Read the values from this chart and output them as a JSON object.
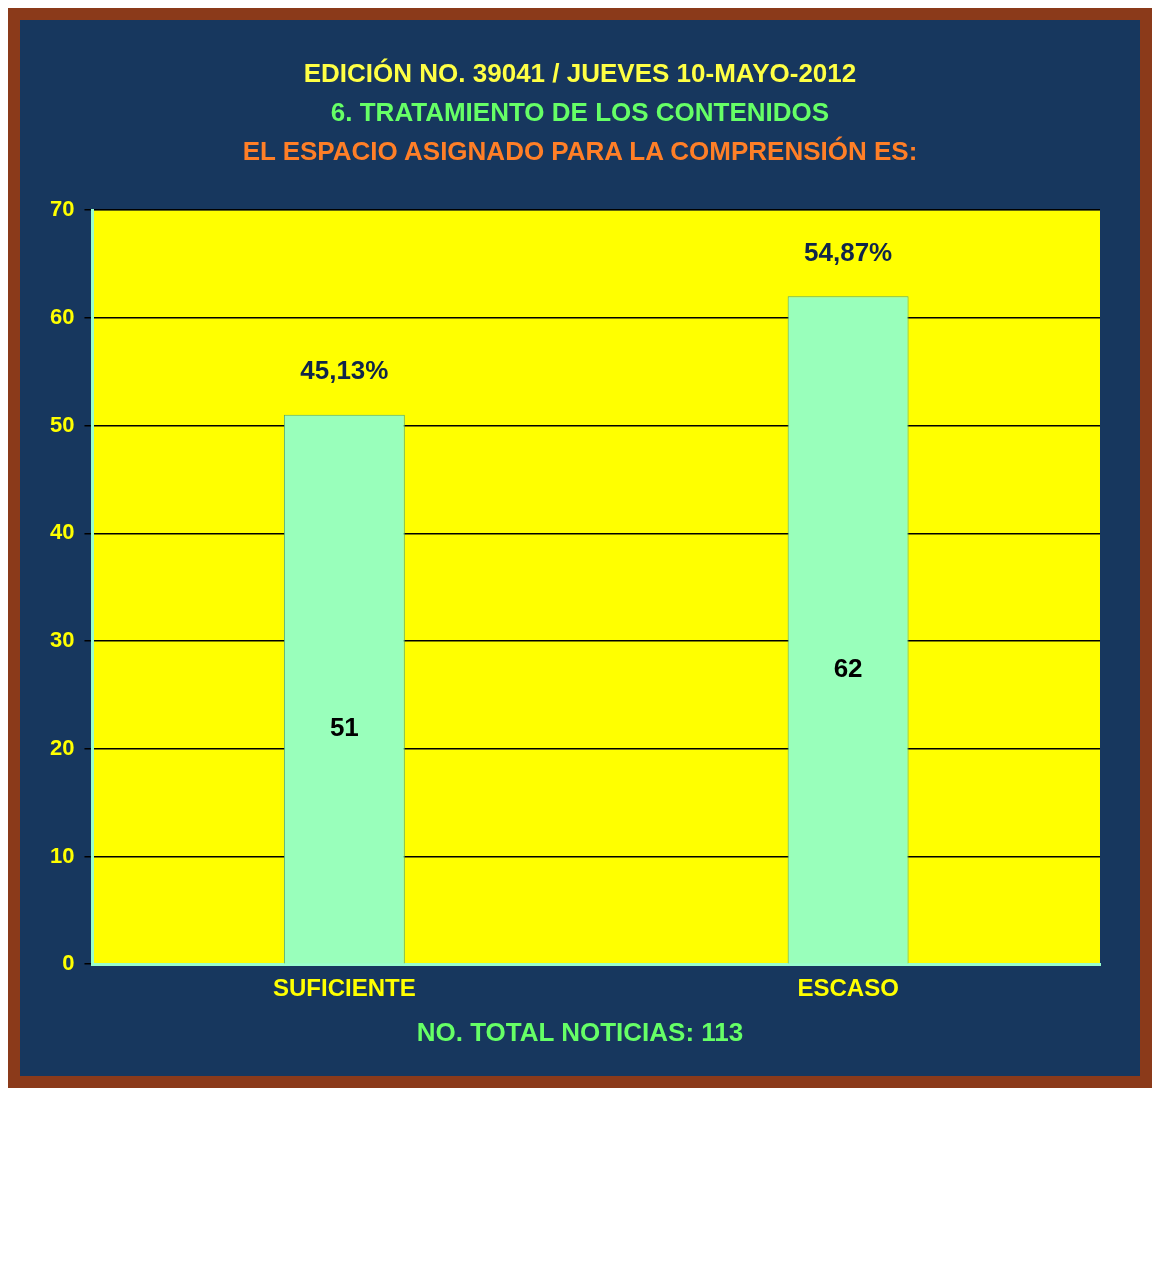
{
  "chart_data": {
    "type": "bar",
    "title": "EDICIÓN NO. 39041 / JUEVES  10-MAYO-2012",
    "subtitle": "6.  TRATAMIENTO DE LOS CONTENIDOS",
    "annotations": [
      "EL ESPACIO ASIGNADO PARA LA COMPRENSIÓN ES:",
      "NO. TOTAL NOTICIAS:  113",
      {
        "text": "45,13%",
        "x": "SUFICIENTE",
        "y": 51
      },
      {
        "text": "54,87%",
        "x": "ESCASO",
        "y": 62
      }
    ],
    "categories": [
      "SUFICIENTE",
      "ESCASO"
    ],
    "values": [
      51,
      62
    ],
    "color": "#99ffbb",
    "value_labels": [
      "51",
      "62"
    ],
    "ylim": [
      0,
      70
    ],
    "yticks": [
      0,
      10,
      20,
      30,
      40,
      50,
      60,
      70
    ],
    "grid": "y"
  }
}
